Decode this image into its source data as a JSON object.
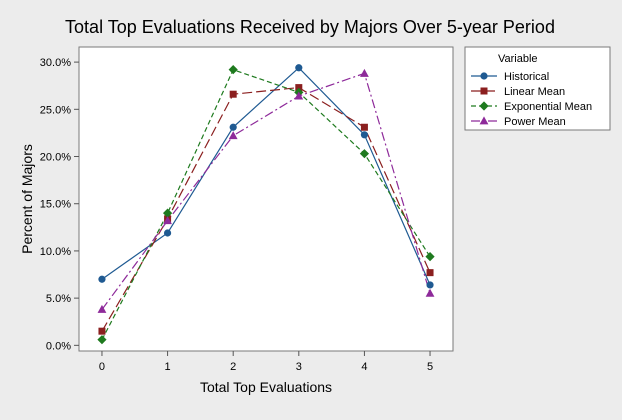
{
  "chart_data": {
    "type": "line",
    "title": "Total Top Evaluations Received by Majors Over 5-year Period",
    "xlabel": "Total Top Evaluations",
    "ylabel": "Percent of Majors",
    "x": [
      0,
      1,
      2,
      3,
      4,
      5
    ],
    "x_tick_labels": [
      "0",
      "1",
      "2",
      "3",
      "4",
      "5"
    ],
    "y_ticks": [
      0,
      5,
      10,
      15,
      20,
      25,
      30
    ],
    "y_tick_labels": [
      "0.0%",
      "5.0%",
      "10.0%",
      "15.0%",
      "20.0%",
      "25.0%",
      "30.0%"
    ],
    "ylim": [
      -0.6,
      31.6
    ],
    "xlim": [
      -0.35,
      5.35
    ],
    "grid": false,
    "legend": {
      "title": "Variable",
      "placement": "right"
    },
    "series": [
      {
        "name": "Historical",
        "values": [
          7.0,
          11.9,
          23.1,
          29.4,
          22.3,
          6.4
        ],
        "color": "#1f5a92",
        "marker": "circle",
        "dash": "solid"
      },
      {
        "name": "Linear Mean",
        "values": [
          1.5,
          13.4,
          26.6,
          27.3,
          23.1,
          7.7
        ],
        "color": "#8b1f1f",
        "marker": "square",
        "dash": "long-dash"
      },
      {
        "name": "Exponential Mean",
        "values": [
          0.6,
          14.0,
          29.2,
          26.8,
          20.3,
          9.4
        ],
        "color": "#1e7a1e",
        "marker": "diamond",
        "dash": "short-dash"
      },
      {
        "name": "Power Mean",
        "values": [
          3.8,
          13.2,
          22.2,
          26.4,
          28.8,
          5.5
        ],
        "color": "#8e2a9a",
        "marker": "triangle",
        "dash": "dash-dot"
      }
    ]
  }
}
